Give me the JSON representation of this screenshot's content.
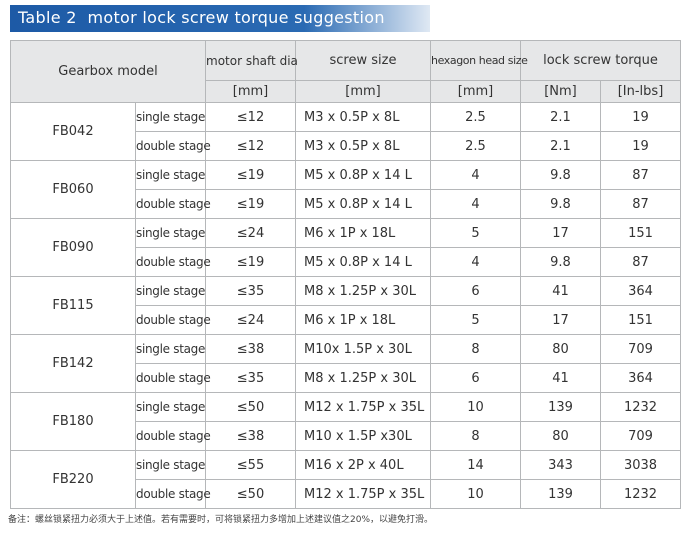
{
  "header": {
    "title": "Table 2  motor lock screw torque suggestion"
  },
  "table": {
    "headers": {
      "model": "Gearbox model",
      "dia": "motor shaft dia",
      "dia_unit": "[mm]",
      "screw": "screw size",
      "screw_unit": "[mm]",
      "hex": "hexagon head size",
      "hex_unit": "[mm]",
      "torque": "lock screw torque",
      "nm_unit": "[Nm]",
      "inlbs_unit": "[In-lbs]"
    },
    "groups": [
      {
        "model": "FB042",
        "rows": [
          [
            "single stage",
            "≤12",
            "M3 x 0.5P x 8L",
            2.5,
            2.1,
            19
          ],
          [
            "double stage",
            "≤12",
            "M3 x 0.5P x 8L",
            2.5,
            2.1,
            19
          ]
        ]
      },
      {
        "model": "FB060",
        "rows": [
          [
            "single stage",
            "≤19",
            "M5 x 0.8P x 14 L",
            4,
            9.8,
            87
          ],
          [
            "double stage",
            "≤19",
            "M5 x 0.8P x 14 L",
            4,
            9.8,
            87
          ]
        ]
      },
      {
        "model": "FB090",
        "rows": [
          [
            "single stage",
            "≤24",
            "M6 x 1P x 18L",
            5,
            17,
            151
          ],
          [
            "double stage",
            "≤19",
            "M5 x 0.8P x 14 L",
            4,
            9.8,
            87
          ]
        ]
      },
      {
        "model": "FB115",
        "rows": [
          [
            "single stage",
            "≤35",
            "M8 x 1.25P x 30L",
            6,
            41,
            364
          ],
          [
            "double stage",
            "≤24",
            "M6 x 1P x 18L",
            5,
            17,
            151
          ]
        ]
      },
      {
        "model": "FB142",
        "rows": [
          [
            "single stage",
            "≤38",
            "M10x 1.5P x 30L",
            8,
            80,
            709
          ],
          [
            "double stage",
            "≤35",
            "M8 x 1.25P x 30L",
            6,
            41,
            364
          ]
        ]
      },
      {
        "model": "FB180",
        "rows": [
          [
            "single stage",
            "≤50",
            "M12 x 1.75P x 35L",
            10,
            139,
            1232
          ],
          [
            "double stage",
            "≤38",
            "M10 x 1.5P x30L",
            8,
            80,
            709
          ]
        ]
      },
      {
        "model": "FB220",
        "rows": [
          [
            "single stage",
            "≤55",
            "M16 x 2P x 40L",
            14,
            343,
            3038
          ],
          [
            "double stage",
            "≤50",
            "M12 x 1.75P x 35L",
            10,
            139,
            1232
          ]
        ]
      }
    ]
  },
  "footnote": "备注：螺丝锁紧扭力必须大于上述值。若有需要时，可将锁紧扭力多增加上述建议值之20%，以避免打滑。"
}
